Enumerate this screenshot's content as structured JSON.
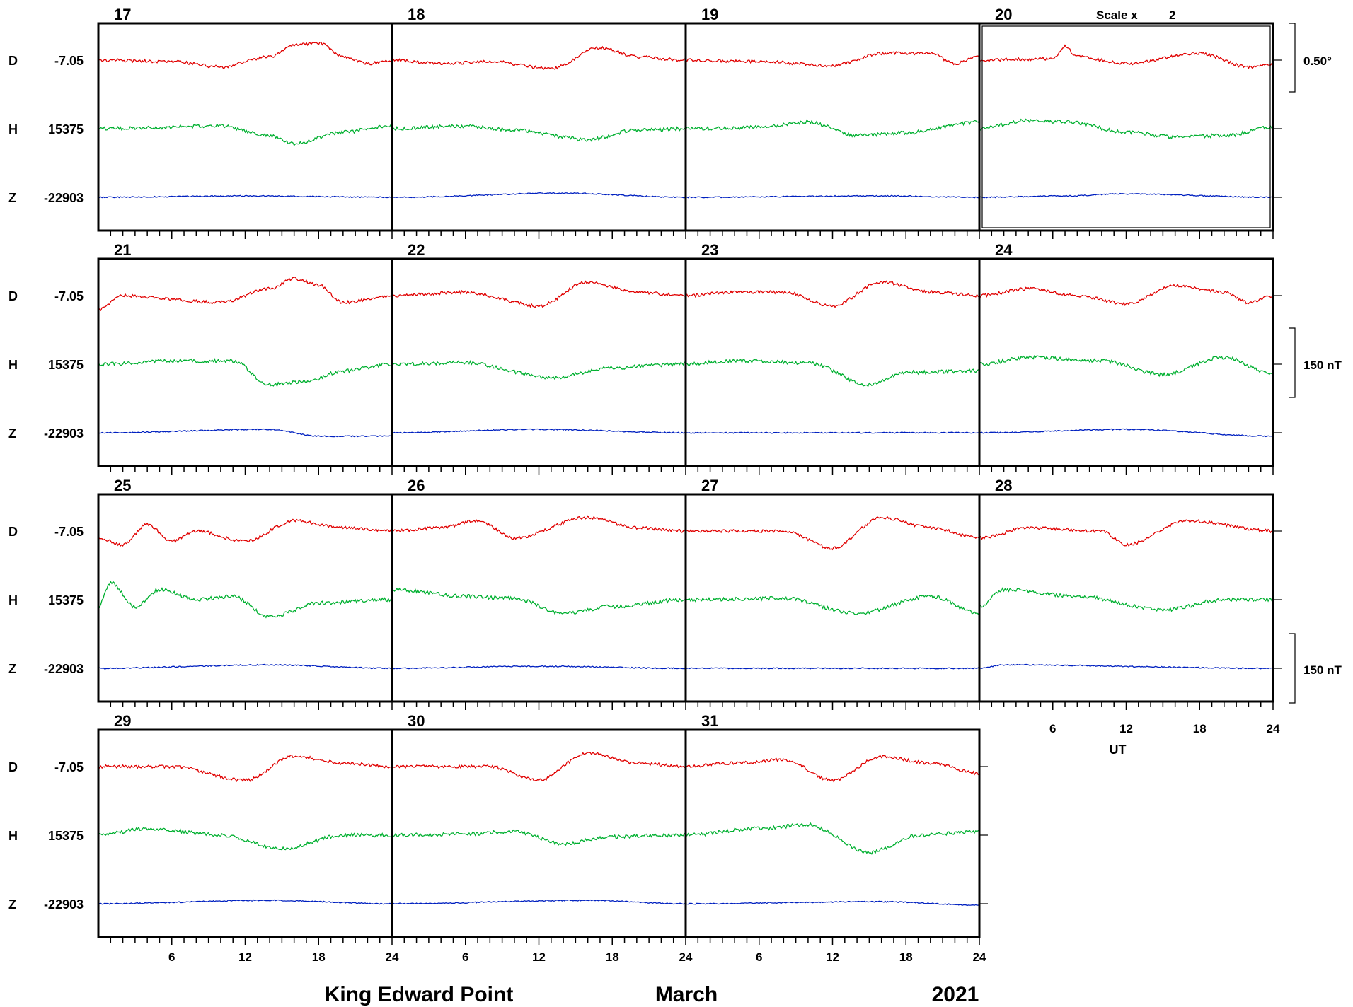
{
  "footer": {
    "station": "King Edward Point",
    "month": "March",
    "year": "2021"
  },
  "chart_data": {
    "type": "line",
    "time_axis": {
      "unit_label": "UT",
      "tick_labels": [
        "6",
        "12",
        "18",
        "24"
      ],
      "range_hours": [
        0,
        24
      ]
    },
    "components": [
      {
        "name": "D",
        "baseline": "-7.05",
        "color": "#e00000"
      },
      {
        "name": "H",
        "baseline": "15375",
        "color": "#00b030"
      },
      {
        "name": "Z",
        "baseline": "-22903",
        "color": "#0020c0"
      }
    ],
    "scale_note": {
      "label": "Scale x",
      "factor": "2",
      "applies_to_day": 20
    },
    "scale_bars": [
      {
        "row": 0,
        "label": "0.50°"
      },
      {
        "row": 1,
        "label": "150 nT"
      },
      {
        "row": 2,
        "label": "150 nT"
      }
    ],
    "days": [
      [
        17,
        18,
        19,
        20
      ],
      [
        21,
        22,
        23,
        24
      ],
      [
        25,
        26,
        27,
        28
      ],
      [
        29,
        30,
        31
      ]
    ],
    "series_shape_keypoints": {
      "description_units": "hour (UT), offset from baseline as fraction of row spacing (positive up)",
      "day_17": {
        "D": [
          [
            0,
            0
          ],
          [
            6,
            -0.02
          ],
          [
            10,
            -0.1
          ],
          [
            14,
            0.05
          ],
          [
            16,
            0.22
          ],
          [
            18,
            0.25
          ],
          [
            20,
            0.05
          ],
          [
            22,
            -0.05
          ],
          [
            24,
            0
          ]
        ],
        "H": [
          [
            0,
            0
          ],
          [
            10,
            0.04
          ],
          [
            14,
            -0.1
          ],
          [
            16,
            -0.22
          ],
          [
            20,
            -0.05
          ],
          [
            24,
            0.05
          ]
        ],
        "Z": [
          [
            0,
            0
          ],
          [
            12,
            0.02
          ],
          [
            24,
            0
          ]
        ]
      },
      "day_18": {
        "D": [
          [
            0,
            0
          ],
          [
            4,
            -0.05
          ],
          [
            8,
            -0.02
          ],
          [
            13,
            -0.12
          ],
          [
            17,
            0.18
          ],
          [
            20,
            0.05
          ],
          [
            24,
            0
          ]
        ],
        "H": [
          [
            0,
            0
          ],
          [
            6,
            0.04
          ],
          [
            10,
            -0.02
          ],
          [
            16,
            -0.16
          ],
          [
            20,
            -0.02
          ],
          [
            24,
            0
          ]
        ],
        "Z": [
          [
            0,
            0
          ],
          [
            14,
            0.06
          ],
          [
            24,
            0
          ]
        ]
      },
      "day_19": {
        "D": [
          [
            0,
            0
          ],
          [
            6,
            -0.02
          ],
          [
            12,
            -0.08
          ],
          [
            16,
            0.1
          ],
          [
            20,
            0.1
          ],
          [
            22,
            -0.05
          ],
          [
            24,
            0.05
          ]
        ],
        "H": [
          [
            0,
            0
          ],
          [
            6,
            0.02
          ],
          [
            10,
            0.1
          ],
          [
            14,
            -0.1
          ],
          [
            18,
            -0.06
          ],
          [
            24,
            0.1
          ]
        ],
        "Z": [
          [
            0,
            0
          ],
          [
            16,
            0.02
          ],
          [
            24,
            0
          ]
        ]
      },
      "day_20": {
        "D": [
          [
            0,
            0
          ],
          [
            6,
            0.02
          ],
          [
            7,
            0.2
          ],
          [
            8,
            0.05
          ],
          [
            12,
            -0.05
          ],
          [
            18,
            0.1
          ],
          [
            22,
            -0.1
          ],
          [
            24,
            -0.05
          ]
        ],
        "H": [
          [
            0,
            0
          ],
          [
            4,
            0.12
          ],
          [
            7,
            0.1
          ],
          [
            12,
            -0.05
          ],
          [
            16,
            -0.12
          ],
          [
            20,
            -0.1
          ],
          [
            24,
            0.02
          ]
        ],
        "Z": [
          [
            0,
            0
          ],
          [
            7,
            0.02
          ],
          [
            12,
            0.05
          ],
          [
            24,
            0
          ]
        ]
      },
      "day_21": {
        "D": [
          [
            0,
            -0.2
          ],
          [
            2,
            0
          ],
          [
            10,
            -0.1
          ],
          [
            14,
            0.1
          ],
          [
            16,
            0.25
          ],
          [
            18,
            0.15
          ],
          [
            20,
            -0.1
          ],
          [
            24,
            0
          ]
        ],
        "H": [
          [
            0,
            0
          ],
          [
            6,
            0.05
          ],
          [
            11,
            0.05
          ],
          [
            14,
            -0.3
          ],
          [
            17,
            -0.25
          ],
          [
            20,
            -0.1
          ],
          [
            24,
            0
          ]
        ],
        "Z": [
          [
            0,
            0
          ],
          [
            14,
            0.05
          ],
          [
            18,
            -0.05
          ],
          [
            24,
            -0.05
          ]
        ]
      },
      "day_22": {
        "D": [
          [
            0,
            0
          ],
          [
            6,
            0.05
          ],
          [
            12,
            -0.15
          ],
          [
            16,
            0.2
          ],
          [
            20,
            0.05
          ],
          [
            24,
            0
          ]
        ],
        "H": [
          [
            0,
            0
          ],
          [
            6,
            0.02
          ],
          [
            13,
            -0.2
          ],
          [
            18,
            -0.05
          ],
          [
            24,
            0
          ]
        ],
        "Z": [
          [
            0,
            0
          ],
          [
            12,
            0.05
          ],
          [
            24,
            0
          ]
        ]
      },
      "day_23": {
        "D": [
          [
            0,
            0
          ],
          [
            4,
            0.05
          ],
          [
            8,
            0.05
          ],
          [
            12,
            -0.15
          ],
          [
            16,
            0.2
          ],
          [
            20,
            0.05
          ],
          [
            24,
            0
          ]
        ],
        "H": [
          [
            0,
            0
          ],
          [
            4,
            0.05
          ],
          [
            10,
            0.02
          ],
          [
            15,
            -0.3
          ],
          [
            18,
            -0.12
          ],
          [
            24,
            -0.1
          ]
        ],
        "Z": [
          [
            0,
            0
          ],
          [
            24,
            0
          ]
        ]
      },
      "day_24": {
        "D": [
          [
            0,
            0
          ],
          [
            4,
            0.1
          ],
          [
            8,
            0
          ],
          [
            12,
            -0.12
          ],
          [
            16,
            0.15
          ],
          [
            20,
            0.05
          ],
          [
            22,
            -0.1
          ],
          [
            24,
            0
          ]
        ],
        "H": [
          [
            0,
            0
          ],
          [
            4,
            0.1
          ],
          [
            10,
            0.05
          ],
          [
            15,
            -0.15
          ],
          [
            20,
            0.1
          ],
          [
            24,
            -0.15
          ]
        ],
        "Z": [
          [
            0,
            0
          ],
          [
            12,
            0.05
          ],
          [
            24,
            -0.05
          ]
        ]
      },
      "day_25": {
        "D": [
          [
            0,
            -0.1
          ],
          [
            2,
            -0.2
          ],
          [
            4,
            0.1
          ],
          [
            6,
            -0.15
          ],
          [
            8,
            0
          ],
          [
            12,
            -0.15
          ],
          [
            16,
            0.15
          ],
          [
            20,
            0.05
          ],
          [
            24,
            0
          ]
        ],
        "H": [
          [
            0,
            -0.1
          ],
          [
            1,
            0.25
          ],
          [
            3,
            -0.1
          ],
          [
            5,
            0.15
          ],
          [
            8,
            0
          ],
          [
            11,
            0.05
          ],
          [
            14,
            -0.25
          ],
          [
            18,
            -0.05
          ],
          [
            24,
            0
          ]
        ],
        "Z": [
          [
            0,
            0
          ],
          [
            14,
            0.05
          ],
          [
            24,
            0
          ]
        ]
      },
      "day_26": {
        "D": [
          [
            0,
            0
          ],
          [
            4,
            0.05
          ],
          [
            7,
            0.15
          ],
          [
            10,
            -0.1
          ],
          [
            16,
            0.2
          ],
          [
            20,
            0.05
          ],
          [
            24,
            0
          ]
        ],
        "H": [
          [
            0,
            0.15
          ],
          [
            6,
            0.05
          ],
          [
            10,
            0.02
          ],
          [
            14,
            -0.2
          ],
          [
            18,
            -0.1
          ],
          [
            24,
            0
          ]
        ],
        "Z": [
          [
            0,
            0
          ],
          [
            12,
            0.03
          ],
          [
            24,
            0
          ]
        ]
      },
      "day_27": {
        "D": [
          [
            0,
            0
          ],
          [
            8,
            0
          ],
          [
            12,
            -0.25
          ],
          [
            16,
            0.2
          ],
          [
            20,
            0.05
          ],
          [
            24,
            -0.1
          ]
        ],
        "H": [
          [
            0,
            0
          ],
          [
            8,
            0.02
          ],
          [
            14,
            -0.2
          ],
          [
            20,
            0.05
          ],
          [
            24,
            -0.2
          ]
        ],
        "Z": [
          [
            0,
            0
          ],
          [
            24,
            0
          ]
        ]
      },
      "day_28": {
        "D": [
          [
            0,
            -0.1
          ],
          [
            4,
            0.05
          ],
          [
            10,
            0
          ],
          [
            12,
            -0.2
          ],
          [
            17,
            0.15
          ],
          [
            24,
            0
          ]
        ],
        "H": [
          [
            0,
            -0.1
          ],
          [
            2,
            0.15
          ],
          [
            8,
            0.05
          ],
          [
            15,
            -0.15
          ],
          [
            20,
            0
          ],
          [
            24,
            0
          ]
        ],
        "Z": [
          [
            0,
            0
          ],
          [
            2,
            0.05
          ],
          [
            24,
            0
          ]
        ]
      },
      "day_29": {
        "D": [
          [
            0,
            0
          ],
          [
            6,
            0
          ],
          [
            12,
            -0.2
          ],
          [
            16,
            0.15
          ],
          [
            20,
            0.05
          ],
          [
            24,
            0
          ]
        ],
        "H": [
          [
            0,
            0
          ],
          [
            4,
            0.1
          ],
          [
            10,
            0
          ],
          [
            15,
            -0.2
          ],
          [
            20,
            0
          ],
          [
            24,
            0
          ]
        ],
        "Z": [
          [
            0,
            0
          ],
          [
            14,
            0.05
          ],
          [
            24,
            0
          ]
        ]
      },
      "day_30": {
        "D": [
          [
            0,
            0
          ],
          [
            8,
            0
          ],
          [
            12,
            -0.2
          ],
          [
            16,
            0.2
          ],
          [
            20,
            0.05
          ],
          [
            24,
            0
          ]
        ],
        "H": [
          [
            0,
            0
          ],
          [
            6,
            0.02
          ],
          [
            10,
            0.05
          ],
          [
            14,
            -0.12
          ],
          [
            18,
            -0.02
          ],
          [
            24,
            0
          ]
        ],
        "Z": [
          [
            0,
            0
          ],
          [
            16,
            0.05
          ],
          [
            24,
            0
          ]
        ]
      },
      "day_31": {
        "D": [
          [
            0,
            0
          ],
          [
            4,
            0.05
          ],
          [
            8,
            0.1
          ],
          [
            12,
            -0.2
          ],
          [
            16,
            0.15
          ],
          [
            20,
            0.05
          ],
          [
            24,
            -0.1
          ]
        ],
        "H": [
          [
            0,
            0
          ],
          [
            6,
            0.1
          ],
          [
            10,
            0.15
          ],
          [
            15,
            -0.25
          ],
          [
            19,
            0
          ],
          [
            24,
            0.05
          ]
        ],
        "Z": [
          [
            0,
            0
          ],
          [
            16,
            0.03
          ],
          [
            24,
            -0.02
          ]
        ]
      }
    }
  }
}
